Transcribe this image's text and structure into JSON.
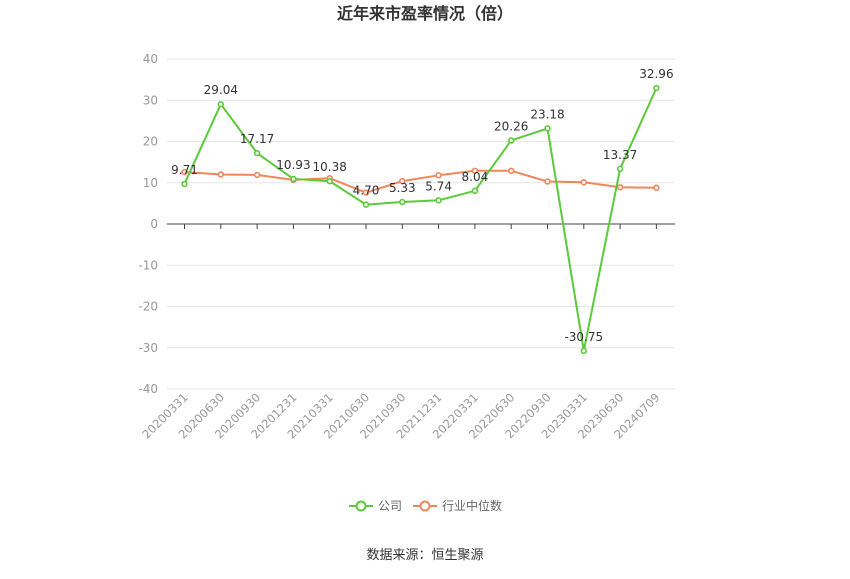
{
  "chart_data": {
    "type": "line",
    "title": "近年来市盈率情况（倍）",
    "categories": [
      "20200331",
      "20200630",
      "20200930",
      "20201231",
      "20210331",
      "20210630",
      "20210930",
      "20211231",
      "20220331",
      "20220630",
      "20220930",
      "20230331",
      "20230630",
      "20240709"
    ],
    "series": [
      {
        "name": "公司",
        "color": "#5CC93A",
        "values": [
          9.71,
          29.04,
          17.17,
          10.93,
          10.38,
          4.7,
          5.33,
          5.74,
          8.04,
          20.26,
          23.18,
          -30.75,
          13.37,
          32.96
        ],
        "labels": [
          "9.71",
          "29.04",
          "17.17",
          "10.93",
          "10.38",
          "4.70",
          "5.33",
          "5.74",
          "8.04",
          "20.26",
          "23.18",
          "-30.75",
          "13.37",
          "32.96"
        ]
      },
      {
        "name": "行业中位数",
        "color": "#F0865C",
        "values": [
          12.6,
          12.0,
          11.9,
          10.7,
          11.1,
          7.6,
          10.4,
          11.8,
          12.9,
          12.9,
          10.3,
          10.1,
          8.9,
          8.8
        ]
      }
    ],
    "ylim": [
      -40,
      40
    ],
    "yticks": [
      40,
      30,
      20,
      10,
      0,
      -10,
      -20,
      -30,
      -40
    ],
    "grid": true,
    "legend_position": "bottom"
  },
  "source_text": "数据来源：恒生聚源"
}
